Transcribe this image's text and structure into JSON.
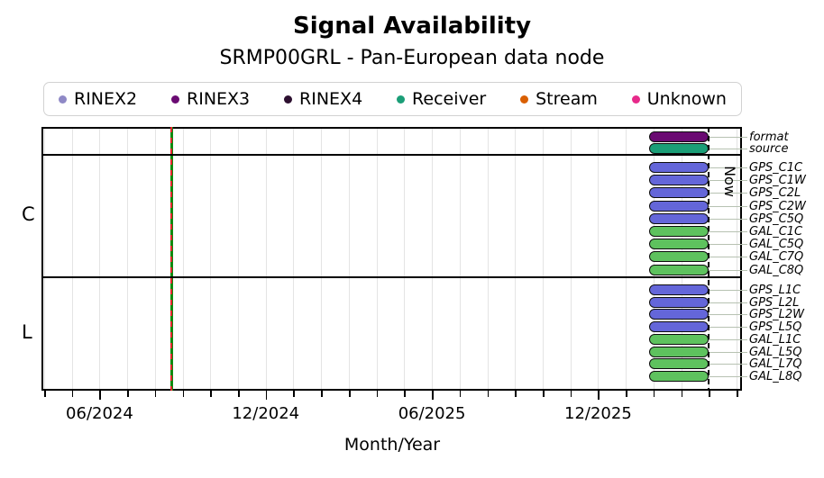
{
  "title": "Signal Availability",
  "subtitle": "SRMP00GRL - Pan-European data node",
  "legend": {
    "items": [
      {
        "label": "RINEX2",
        "color": "#8f89c6"
      },
      {
        "label": "RINEX3",
        "color": "#6a0a72"
      },
      {
        "label": "RINEX4",
        "color": "#2d1030"
      },
      {
        "label": "Receiver",
        "color": "#1b9e77"
      },
      {
        "label": "Stream",
        "color": "#d95f02"
      },
      {
        "label": "Unknown",
        "color": "#e7298a"
      }
    ]
  },
  "chart_data": {
    "type": "timeline-bar",
    "title": "Signal Availability",
    "subtitle": "SRMP00GRL - Pan-European data node",
    "x_axis": {
      "label": "Month/Year",
      "major_ticks": [
        {
          "label": "06/2024",
          "month_index": 2
        },
        {
          "label": "12/2024",
          "month_index": 8
        },
        {
          "label": "06/2025",
          "month_index": 14
        },
        {
          "label": "12/2025",
          "month_index": 20
        }
      ],
      "minor_tick_months": [
        0,
        1,
        2,
        3,
        4,
        5,
        6,
        7,
        8,
        9,
        10,
        11,
        12,
        13,
        14,
        15,
        16,
        17,
        18,
        19,
        20,
        21,
        22,
        23,
        24,
        25
      ],
      "grid": true
    },
    "now_line": {
      "label": "Now",
      "month_index": 24.0
    },
    "event_line": {
      "month_index": 4.6
    },
    "colors": {
      "gps": "#6466d9",
      "gal": "#5ec25e",
      "rinex3": "#6a0a72",
      "receiver": "#1b9e77"
    },
    "bands": [
      {
        "name": "meta",
        "label": "",
        "rows": [
          {
            "label": "format",
            "color_key": "rinex3",
            "start": 21.85,
            "end": 24.0
          },
          {
            "label": "source",
            "color_key": "receiver",
            "start": 21.85,
            "end": 24.0
          }
        ]
      },
      {
        "name": "code",
        "label": "C",
        "rows": [
          {
            "label": "GPS_C1C",
            "color_key": "gps",
            "start": 21.85,
            "end": 24.0
          },
          {
            "label": "GPS_C1W",
            "color_key": "gps",
            "start": 21.85,
            "end": 24.0
          },
          {
            "label": "GPS_C2L",
            "color_key": "gps",
            "start": 21.85,
            "end": 24.0
          },
          {
            "label": "GPS_C2W",
            "color_key": "gps",
            "start": 21.85,
            "end": 24.0
          },
          {
            "label": "GPS_C5Q",
            "color_key": "gps",
            "start": 21.85,
            "end": 24.0
          },
          {
            "label": "GAL_C1C",
            "color_key": "gal",
            "start": 21.85,
            "end": 24.0
          },
          {
            "label": "GAL_C5Q",
            "color_key": "gal",
            "start": 21.85,
            "end": 24.0
          },
          {
            "label": "GAL_C7Q",
            "color_key": "gal",
            "start": 21.85,
            "end": 24.0
          },
          {
            "label": "GAL_C8Q",
            "color_key": "gal",
            "start": 21.85,
            "end": 24.0
          }
        ]
      },
      {
        "name": "phase",
        "label": "L",
        "rows": [
          {
            "label": "GPS_L1C",
            "color_key": "gps",
            "start": 21.85,
            "end": 24.0
          },
          {
            "label": "GPS_L2L",
            "color_key": "gps",
            "start": 21.85,
            "end": 24.0
          },
          {
            "label": "GPS_L2W",
            "color_key": "gps",
            "start": 21.85,
            "end": 24.0
          },
          {
            "label": "GPS_L5Q",
            "color_key": "gps",
            "start": 21.85,
            "end": 24.0
          },
          {
            "label": "GAL_L1C",
            "color_key": "gal",
            "start": 21.85,
            "end": 24.0
          },
          {
            "label": "GAL_L5Q",
            "color_key": "gal",
            "start": 21.85,
            "end": 24.0
          },
          {
            "label": "GAL_L7Q",
            "color_key": "gal",
            "start": 21.85,
            "end": 24.0
          },
          {
            "label": "GAL_L8Q",
            "color_key": "gal",
            "start": 21.85,
            "end": 24.0
          }
        ]
      }
    ]
  }
}
